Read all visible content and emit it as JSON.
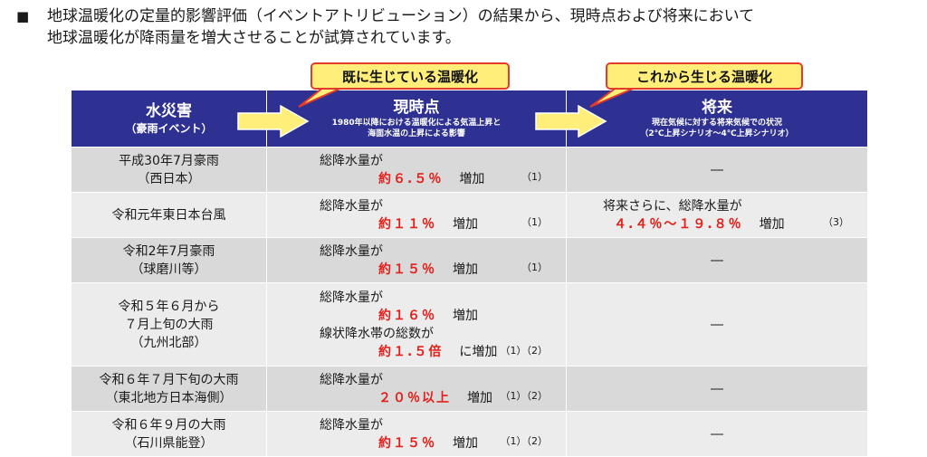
{
  "intro": {
    "bullet": "■",
    "line1": "地球温暖化の定量的影響評価（イベントアトリビューション）の結果から、現時点および将来において",
    "line2": "地球温暖化が降雨量を増大させることが試算されています。"
  },
  "callouts": {
    "current": "既に生じている温暖化",
    "future": "これから生じる温暖化"
  },
  "header": {
    "col1_title": "水災害",
    "col1_sub": "（豪雨イベント）",
    "col2_title": "現時点",
    "col2_note1": "1980年以降における温暖化による気温上昇と",
    "col2_note2": "海面水温の上昇による影響",
    "col3_title": "将来",
    "col3_note1": "現在気候に対する将来気候での状況",
    "col3_note2": "（2℃上昇シナリオ～4℃上昇シナリオ）"
  },
  "rows": [
    {
      "event1": "平成30年7月豪雨",
      "event2": "（西日本）",
      "label": "総降水量が",
      "value": "約６.５％",
      "suffix": "増加",
      "ref": "（1）",
      "future": "―"
    },
    {
      "event1": "令和元年東日本台風",
      "label": "総降水量が",
      "value": "約１１％",
      "suffix": "増加",
      "ref": "（1）",
      "future_label": "将来さらに、総降水量が",
      "future_value": "４.４％～１９.８％",
      "future_suffix": "増加",
      "future_ref": "（3）"
    },
    {
      "event1": "令和2年7月豪雨",
      "event2": "（球磨川等）",
      "label": "総降水量が",
      "value": "約１５％",
      "suffix": "増加",
      "ref": "（1）",
      "future": "―"
    },
    {
      "event1": "令和５年６月から",
      "event2": "７月上旬の大雨",
      "event3": "（九州北部）",
      "label": "総降水量が",
      "value": "約１６％",
      "suffix": "増加",
      "label2": "線状降水帯の総数が",
      "value2": "約１.５倍",
      "suffix2": "に増加",
      "ref": "（1）（2）",
      "future": "―"
    },
    {
      "event1": "令和６年７月下旬の大雨",
      "event2": "（東北地方日本海側）",
      "label": "総降水量が",
      "value": "２０％以上",
      "suffix": "増加",
      "ref": "（1）（2）",
      "future": "―"
    },
    {
      "event1": "令和６年９月の大雨",
      "event2": "（石川県能登）",
      "label": "総降水量が",
      "value": "約１５％",
      "suffix": "増加",
      "ref": "（1）（2）",
      "future": "―"
    }
  ],
  "colors": {
    "header_bg": "#2e3191",
    "highlight": "#e3201b",
    "callout_bg": "#ffef7a",
    "row_dark": "#d9d9d9",
    "row_light": "#ececec"
  }
}
